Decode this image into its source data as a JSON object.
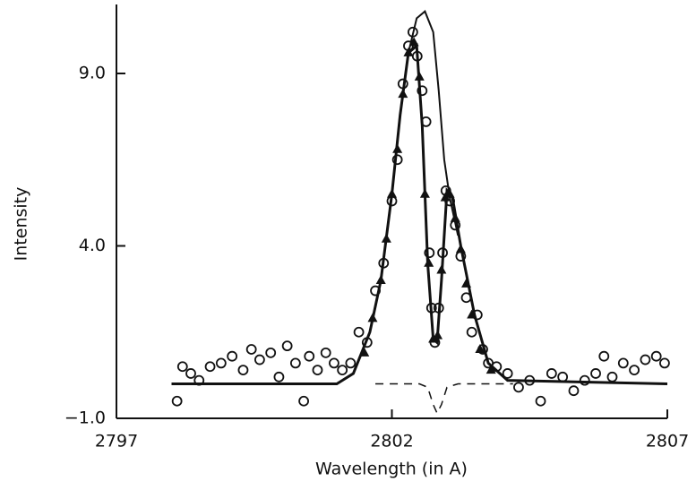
{
  "chart_data": {
    "type": "line",
    "x_label": "Wavelength (in A)",
    "y_label": "Intensity",
    "xlim": [
      2797,
      2807
    ],
    "ylim": [
      -1,
      11
    ],
    "xticks": [
      2797,
      2802,
      2807
    ],
    "yticks": [
      {
        "value": -1,
        "label": "−1.0"
      },
      {
        "value": 4,
        "label": "4.0"
      },
      {
        "value": 9,
        "label": "9.0"
      }
    ],
    "series": [
      {
        "style": "line",
        "dash": false,
        "width": 3,
        "color": "#111111",
        "x": [
          2798,
          2801.0,
          2801.3,
          2801.6,
          2801.8,
          2802.0,
          2802.15,
          2802.3,
          2802.45,
          2802.55,
          2802.65,
          2802.75,
          2802.82,
          2802.9,
          2803.0,
          2803.1,
          2803.25,
          2803.5,
          2803.75,
          2804.1,
          2807
        ],
        "values": [
          0.0,
          0.0,
          0.3,
          1.5,
          3.0,
          5.5,
          7.8,
          9.6,
          9.8,
          7.5,
          3.5,
          1.3,
          1.2,
          3.0,
          5.6,
          5.4,
          4.0,
          2.0,
          0.6,
          0.1,
          0.0
        ]
      },
      {
        "style": "line",
        "dash": false,
        "width": 2,
        "color": "#111111",
        "x": [
          2801.6,
          2801.8,
          2802.0,
          2802.15,
          2802.3,
          2802.45,
          2802.6,
          2802.75,
          2802.85,
          2802.95,
          2803.05,
          2803.2
        ],
        "values": [
          1.5,
          3.0,
          5.5,
          7.8,
          9.6,
          10.6,
          10.8,
          10.2,
          8.5,
          6.5,
          5.4,
          4.3
        ]
      },
      {
        "style": "line",
        "dash": true,
        "width": 1.5,
        "color": "#111111",
        "x": [
          2801.7,
          2802.5,
          2802.65,
          2802.75,
          2802.82,
          2802.9,
          2803.0,
          2803.2,
          2804.2
        ],
        "values": [
          0,
          0,
          -0.1,
          -0.6,
          -0.85,
          -0.6,
          -0.1,
          0,
          0
        ]
      },
      {
        "style": "markers",
        "marker": "circle",
        "color": "#111111",
        "x": [
          2798.1,
          2798.2,
          2798.35,
          2798.5,
          2798.7,
          2798.9,
          2799.1,
          2799.3,
          2799.45,
          2799.6,
          2799.8,
          2799.95,
          2800.1,
          2800.25,
          2800.4,
          2800.5,
          2800.65,
          2800.8,
          2800.95,
          2801.1,
          2801.25,
          2801.4,
          2801.55,
          2801.7,
          2801.85,
          2802.0,
          2802.1,
          2802.2,
          2802.3,
          2802.38,
          2802.46,
          2802.55,
          2802.62,
          2802.68,
          2802.72,
          2802.78,
          2802.85,
          2802.92,
          2802.98,
          2803.05,
          2803.15,
          2803.25,
          2803.35,
          2803.45,
          2803.55,
          2803.65,
          2803.75,
          2803.9,
          2804.1,
          2804.3,
          2804.5,
          2804.7,
          2804.9,
          2805.1,
          2805.3,
          2805.5,
          2805.7,
          2805.85,
          2806.0,
          2806.2,
          2806.4,
          2806.6,
          2806.8,
          2806.95
        ],
        "values": [
          -0.5,
          0.5,
          0.3,
          0.1,
          0.5,
          0.6,
          0.8,
          0.4,
          1.0,
          0.7,
          0.9,
          0.2,
          1.1,
          0.6,
          -0.5,
          0.8,
          0.4,
          0.9,
          0.6,
          0.4,
          0.6,
          1.5,
          1.2,
          2.7,
          3.5,
          5.3,
          6.5,
          8.7,
          9.8,
          10.2,
          9.5,
          8.5,
          7.6,
          3.8,
          2.2,
          1.2,
          2.2,
          3.8,
          5.6,
          5.3,
          4.6,
          3.7,
          2.5,
          1.5,
          2.0,
          1.0,
          0.6,
          0.5,
          0.3,
          -0.1,
          0.1,
          -0.5,
          0.3,
          0.2,
          -0.2,
          0.1,
          0.3,
          0.8,
          0.2,
          0.6,
          0.4,
          0.7,
          0.8,
          0.6
        ]
      },
      {
        "style": "markers",
        "marker": "triangle",
        "color": "#111111",
        "x": [
          2801.5,
          2801.65,
          2801.8,
          2801.9,
          2802.0,
          2802.1,
          2802.2,
          2802.3,
          2802.4,
          2802.5,
          2802.6,
          2802.67,
          2802.75,
          2802.83,
          2802.9,
          2802.97,
          2803.05,
          2803.15,
          2803.25,
          2803.35,
          2803.45,
          2803.6,
          2803.8
        ],
        "values": [
          0.9,
          1.9,
          3.0,
          4.2,
          5.5,
          6.8,
          8.4,
          9.6,
          9.9,
          8.9,
          5.5,
          3.5,
          1.3,
          1.4,
          3.3,
          5.4,
          5.5,
          4.8,
          3.9,
          2.9,
          2.0,
          1.0,
          0.4
        ]
      }
    ]
  }
}
